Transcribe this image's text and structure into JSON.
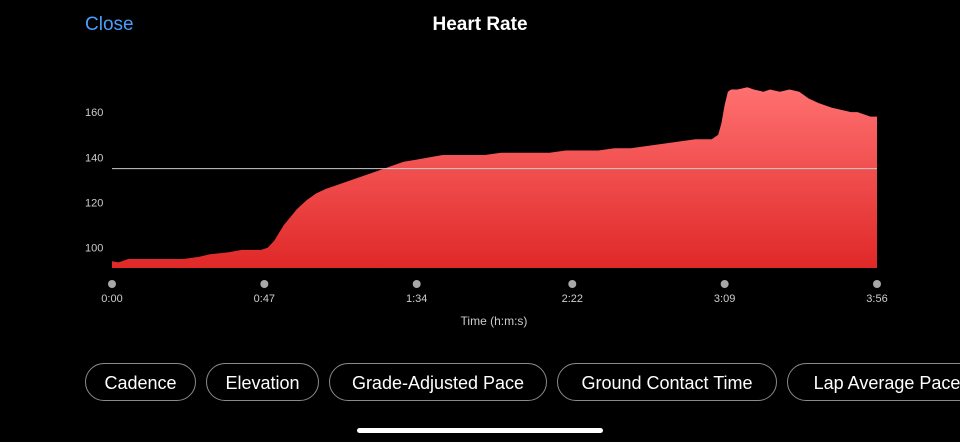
{
  "header": {
    "close_label": "Close",
    "title": "Heart Rate"
  },
  "chips": [
    {
      "label": "Cadence"
    },
    {
      "label": "Elevation"
    },
    {
      "label": "Grade-Adjusted Pace"
    },
    {
      "label": "Ground Contact Time"
    },
    {
      "label": "Lap Average Pace"
    }
  ],
  "colors": {
    "accent": "#4a9eff",
    "fill_top": "#ff7070",
    "fill_bottom": "#e02828",
    "average_line": "#cccccc"
  },
  "chart_data": {
    "type": "area",
    "xlabel": "Time (h:m:s)",
    "ylabel": "",
    "x_ticks": [
      {
        "value": 0,
        "label": "0:00"
      },
      {
        "value": 47,
        "label": "0:47"
      },
      {
        "value": 94,
        "label": "1:34"
      },
      {
        "value": 142,
        "label": "2:22"
      },
      {
        "value": 189,
        "label": "3:09"
      },
      {
        "value": 236,
        "label": "3:56"
      }
    ],
    "y_ticks": [
      100,
      120,
      140,
      160
    ],
    "xlim": [
      0,
      236
    ],
    "ylim": [
      91,
      172
    ],
    "average": 135,
    "series": [
      {
        "x": [
          0,
          2,
          5,
          15,
          22,
          27,
          30,
          36,
          40,
          46,
          48,
          50,
          53,
          57,
          60,
          63,
          66,
          70,
          74,
          78,
          82,
          86,
          90,
          94,
          98,
          102,
          110,
          115,
          120,
          125,
          135,
          140,
          145,
          150,
          155,
          160,
          165,
          170,
          175,
          180,
          185,
          187,
          188,
          189,
          190,
          191,
          193,
          196,
          198,
          201,
          203,
          206,
          209,
          212,
          215,
          218,
          222,
          225,
          228,
          230,
          232,
          234,
          236
        ],
        "y": [
          94,
          93.5,
          95,
          95,
          95,
          96,
          97,
          98,
          99,
          99,
          100,
          103,
          110,
          117,
          121,
          124,
          126,
          128,
          130,
          132,
          134,
          136,
          138,
          139,
          140,
          141,
          141,
          141,
          142,
          142,
          142,
          143,
          143,
          143,
          144,
          144,
          145,
          146,
          147,
          148,
          148,
          150,
          155,
          163,
          169,
          170,
          170,
          171,
          170,
          169,
          170,
          169,
          170,
          169,
          166,
          164,
          162,
          161,
          160,
          160,
          159,
          158,
          158
        ]
      }
    ]
  }
}
